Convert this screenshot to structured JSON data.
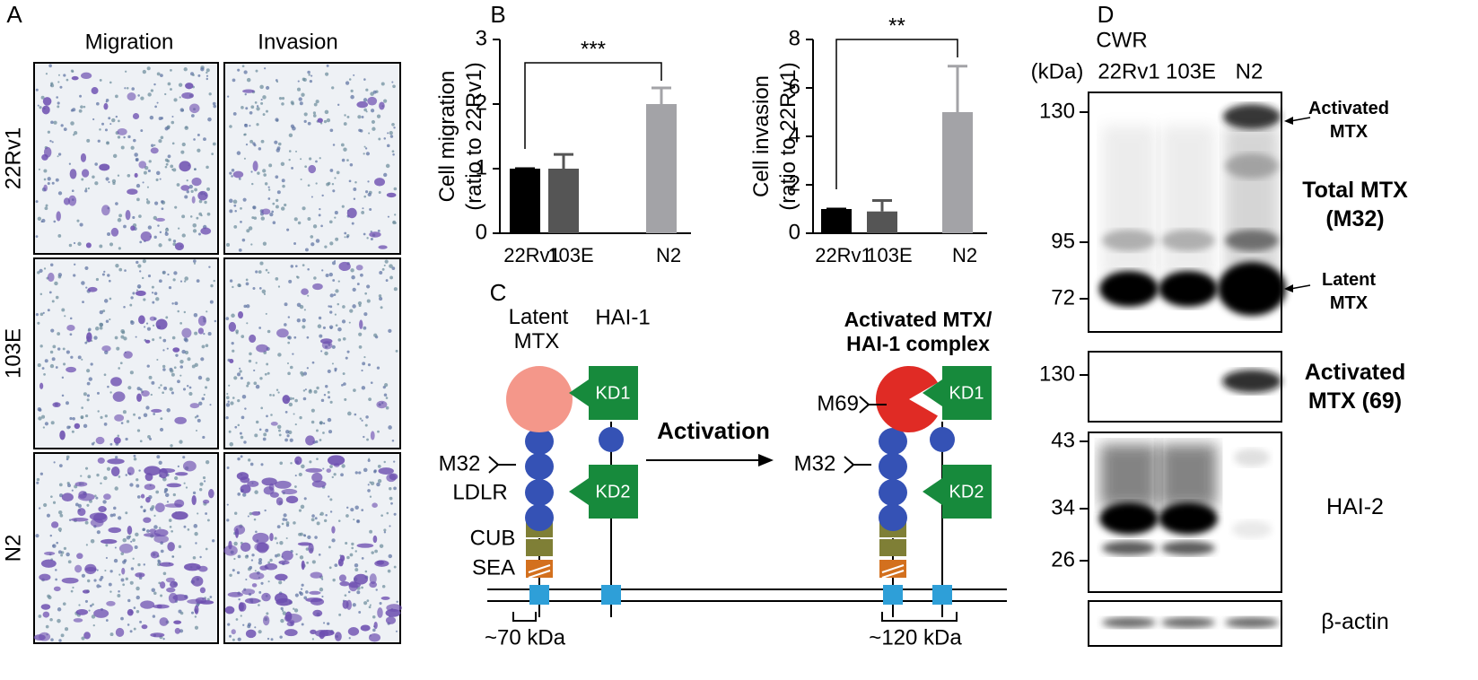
{
  "panel_labels": [
    "A",
    "B",
    "C",
    "D"
  ],
  "panel_a": {
    "columns": [
      "Migration",
      "Invasion"
    ],
    "rows": [
      "22Rv1",
      "103E",
      "N2"
    ]
  },
  "chart_data": [
    {
      "type": "bar",
      "ylabel": [
        "Cell migration",
        "(ratio to 22Rv1)"
      ],
      "categories": [
        "22Rv1",
        "103E",
        "N2"
      ],
      "values": [
        1.0,
        1.0,
        2.0
      ],
      "errors": [
        0,
        0.22,
        0.25
      ],
      "colors": [
        "#000000",
        "#555555",
        "#a3a3a7"
      ],
      "ylim": [
        0,
        3
      ],
      "yticks": [
        0,
        1,
        2,
        3
      ],
      "annotation": "***"
    },
    {
      "type": "bar",
      "ylabel": [
        "Cell invasion",
        "(ratio to 22Rv1)"
      ],
      "categories": [
        "22Rv1",
        "103E",
        "N2"
      ],
      "values": [
        1.0,
        0.9,
        5.0
      ],
      "errors": [
        0,
        0.45,
        1.9
      ],
      "colors": [
        "#000000",
        "#555555",
        "#a3a3a7"
      ],
      "ylim": [
        0,
        8
      ],
      "yticks": [
        0,
        2,
        4,
        6,
        8
      ],
      "annotation": "**"
    }
  ],
  "panel_c": {
    "latent_label": [
      "Latent",
      "MTX"
    ],
    "hai1_label": "HAI-1",
    "complex_label": [
      "Activated MTX/",
      "HAI-1 complex"
    ],
    "kd1": "KD1",
    "kd2": "KD2",
    "m32": "M32",
    "ldlr": "LDLR",
    "cub": "CUB",
    "sea": "SEA",
    "size_left": "~70 kDa",
    "activation": "Activation",
    "m69": "M69",
    "size_right": "~120 kDa"
  },
  "panel_d": {
    "cell_line": "CWR",
    "unit": "(kDa)",
    "lanes": [
      "22Rv1",
      "103E",
      "N2"
    ],
    "blots": [
      {
        "markers": [
          130,
          95,
          72
        ],
        "labels": [
          [
            "Activated",
            "MTX"
          ],
          [
            "Total MTX",
            "(M32)"
          ],
          [
            "Latent",
            "MTX"
          ]
        ]
      },
      {
        "markers": [
          130
        ],
        "labels": [
          [
            "Activated",
            "MTX (69)"
          ]
        ]
      },
      {
        "markers": [
          43,
          34,
          26
        ],
        "labels": [
          [
            "HAI-2"
          ]
        ]
      },
      {
        "markers": [],
        "labels": [
          [
            "β-actin"
          ]
        ]
      }
    ]
  }
}
